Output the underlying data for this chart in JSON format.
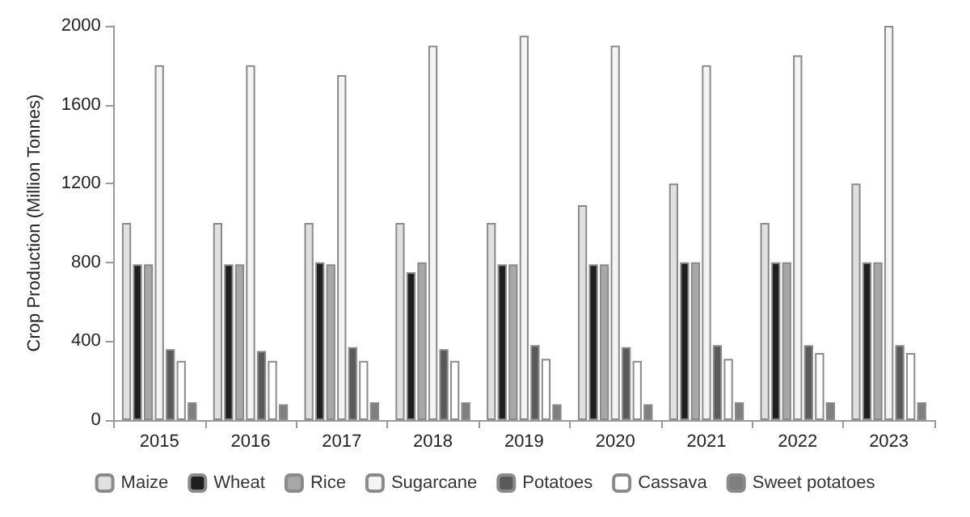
{
  "chart_data": {
    "type": "bar",
    "ylabel": "Crop Production (Million Tonnes)",
    "categories": [
      "2015",
      "2016",
      "2017",
      "2018",
      "2019",
      "2020",
      "2021",
      "2022",
      "2023"
    ],
    "series": [
      {
        "name": "Maize",
        "color": "#e0e0e0",
        "values": [
          1000,
          1000,
          1000,
          1000,
          1000,
          1090,
          1200,
          1000,
          1200
        ]
      },
      {
        "name": "Wheat",
        "color": "#1f1f1f",
        "values": [
          790,
          790,
          800,
          750,
          790,
          790,
          800,
          800,
          800
        ]
      },
      {
        "name": "Rice",
        "color": "#a8a8a8",
        "values": [
          790,
          790,
          790,
          800,
          790,
          790,
          800,
          800,
          800
        ]
      },
      {
        "name": "Sugarcane",
        "color": "#f4f4f4",
        "values": [
          1800,
          1800,
          1750,
          1900,
          1950,
          1900,
          1800,
          1850,
          2000
        ]
      },
      {
        "name": "Potatoes",
        "color": "#5a5a5a",
        "values": [
          360,
          350,
          370,
          360,
          380,
          370,
          380,
          380,
          380
        ]
      },
      {
        "name": "Cassava",
        "color": "#ffffff",
        "values": [
          300,
          300,
          300,
          300,
          310,
          300,
          310,
          340,
          340
        ]
      },
      {
        "name": "Sweet potatoes",
        "color": "#7f7f7f",
        "values": [
          90,
          80,
          90,
          90,
          80,
          80,
          90,
          90,
          90
        ]
      }
    ],
    "ylim": [
      0,
      2000
    ],
    "yticks": [
      0,
      400,
      800,
      1200,
      1600,
      2000
    ],
    "grid": false,
    "legend": "bottom"
  }
}
